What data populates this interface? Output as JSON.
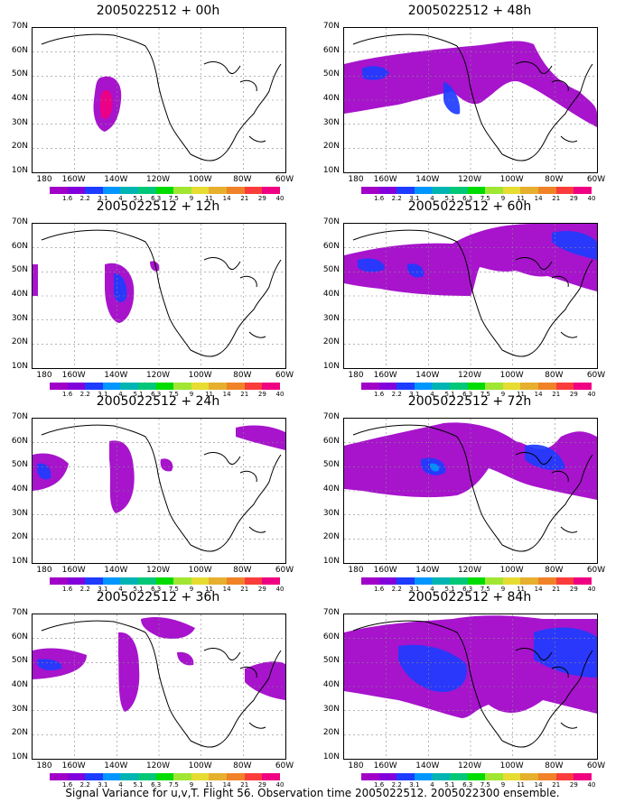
{
  "panels": [
    {
      "title": "2005022512 + 00h"
    },
    {
      "title": "2005022512 + 48h"
    },
    {
      "title": "2005022512 + 12h"
    },
    {
      "title": "2005022512 + 60h"
    },
    {
      "title": "2005022512 + 24h"
    },
    {
      "title": "2005022512 + 72h"
    },
    {
      "title": "2005022512 + 36h"
    },
    {
      "title": "2005022512 + 84h"
    }
  ],
  "lat_labels": [
    "70N",
    "60N",
    "50N",
    "40N",
    "30N",
    "20N",
    "10N"
  ],
  "lon_labels": [
    "180",
    "160W",
    "140W",
    "120W",
    "100W",
    "80W",
    "60W"
  ],
  "colorbar": {
    "colors": [
      "#a000c8",
      "#8200dc",
      "#1e3cff",
      "#0096ff",
      "#00b4b4",
      "#00c878",
      "#00dc00",
      "#a0e632",
      "#e6dc32",
      "#e6af2d",
      "#f08228",
      "#fa3c3c",
      "#f00082"
    ],
    "labels": [
      "1.6",
      "2.2",
      "3.1",
      "4",
      "5.1",
      "6.3",
      "7.5",
      "9",
      "11",
      "14",
      "21",
      "29",
      "40"
    ]
  },
  "footer": "Signal Variance for u,v,T. Flight 56. Observation time 2005022512. 2005022300 ensemble."
}
